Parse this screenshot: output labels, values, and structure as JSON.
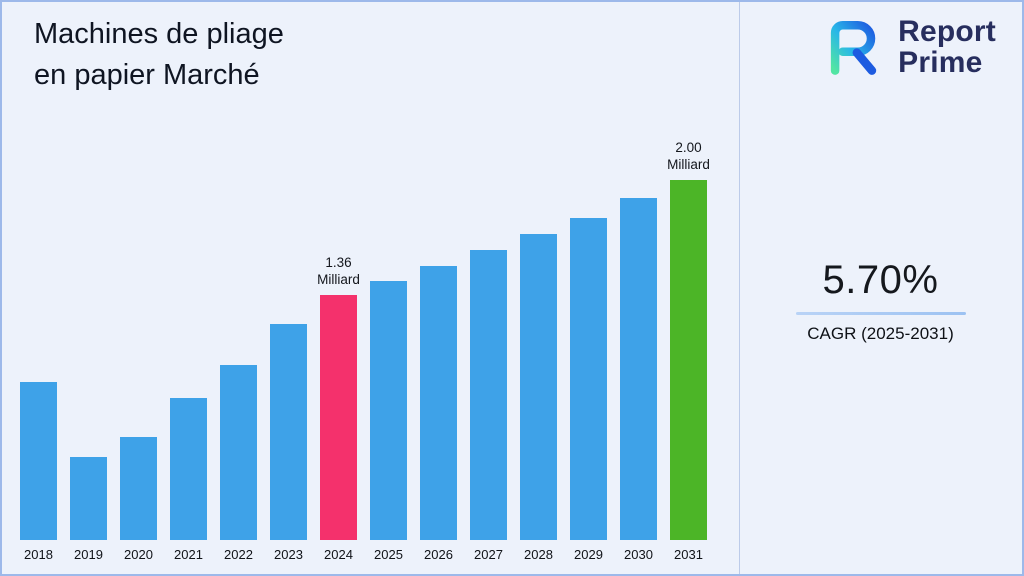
{
  "title": {
    "line1": "Machines de pliage",
    "line2": "en papier Marché"
  },
  "brand": {
    "name_line1": "Report",
    "name_line2": "Prime"
  },
  "stat": {
    "value": "5.70%",
    "label": "CAGR (2025-2031)"
  },
  "chart_data": {
    "type": "bar",
    "title": "Machines de pliage en papier Marché",
    "categories": [
      "2018",
      "2019",
      "2020",
      "2021",
      "2022",
      "2023",
      "2024",
      "2025",
      "2026",
      "2027",
      "2028",
      "2029",
      "2030",
      "2031"
    ],
    "values": [
      0.88,
      0.46,
      0.57,
      0.79,
      0.97,
      1.2,
      1.36,
      1.44,
      1.52,
      1.61,
      1.7,
      1.79,
      1.9,
      2.0
    ],
    "unit": "Milliard",
    "xlabel": "",
    "ylabel": "",
    "ylim": [
      0,
      2.2
    ],
    "grid": false,
    "legend": false,
    "bar_color_default": "#3EA2E8",
    "highlights": [
      {
        "category": "2024",
        "color": "#F4316C",
        "label_lines": [
          "1.36",
          "Milliard"
        ]
      },
      {
        "category": "2031",
        "color": "#4CB527",
        "label_lines": [
          "2.00",
          "Milliard"
        ]
      }
    ]
  }
}
